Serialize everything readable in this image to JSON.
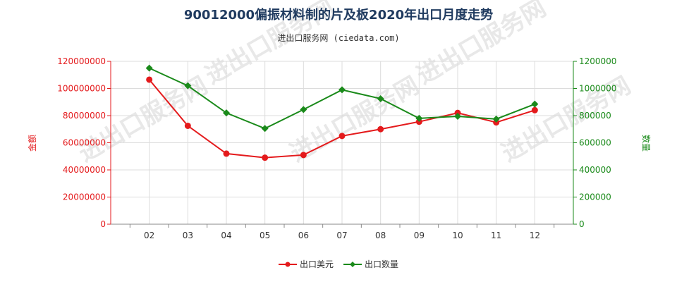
{
  "chart_data": {
    "type": "line",
    "title": "90012000偏振材料制的片及板2020年出口月度走势",
    "subtitle": "进出口服务网 (ciedata.com)",
    "watermark": "进出口服务网",
    "categories": [
      "02",
      "03",
      "04",
      "05",
      "06",
      "07",
      "08",
      "09",
      "10",
      "11",
      "12"
    ],
    "y_left": {
      "label": "金额",
      "ylim": [
        0,
        120000000
      ],
      "ticks": [
        "0",
        "20000000",
        "40000000",
        "60000000",
        "80000000",
        "100000000",
        "120000000"
      ],
      "color": "#e41a1c"
    },
    "y_right": {
      "label": "数量",
      "ylim": [
        0,
        1200000
      ],
      "ticks": [
        "0",
        "200000",
        "400000",
        "600000",
        "800000",
        "1000000",
        "1200000"
      ],
      "color": "#1a8a1a"
    },
    "series": [
      {
        "name": "出口美元",
        "axis": "left",
        "color": "#e41a1c",
        "marker": "circle",
        "values": [
          106500000,
          72500000,
          52000000,
          49000000,
          51000000,
          65000000,
          70000000,
          75500000,
          82000000,
          75000000,
          84000000
        ]
      },
      {
        "name": "出口数量",
        "axis": "right",
        "color": "#1a8a1a",
        "marker": "diamond",
        "values": [
          1150000,
          1020000,
          820000,
          705000,
          845000,
          990000,
          925000,
          780000,
          795000,
          775000,
          885000
        ]
      }
    ],
    "grid": true,
    "legend_position": "bottom-center"
  }
}
